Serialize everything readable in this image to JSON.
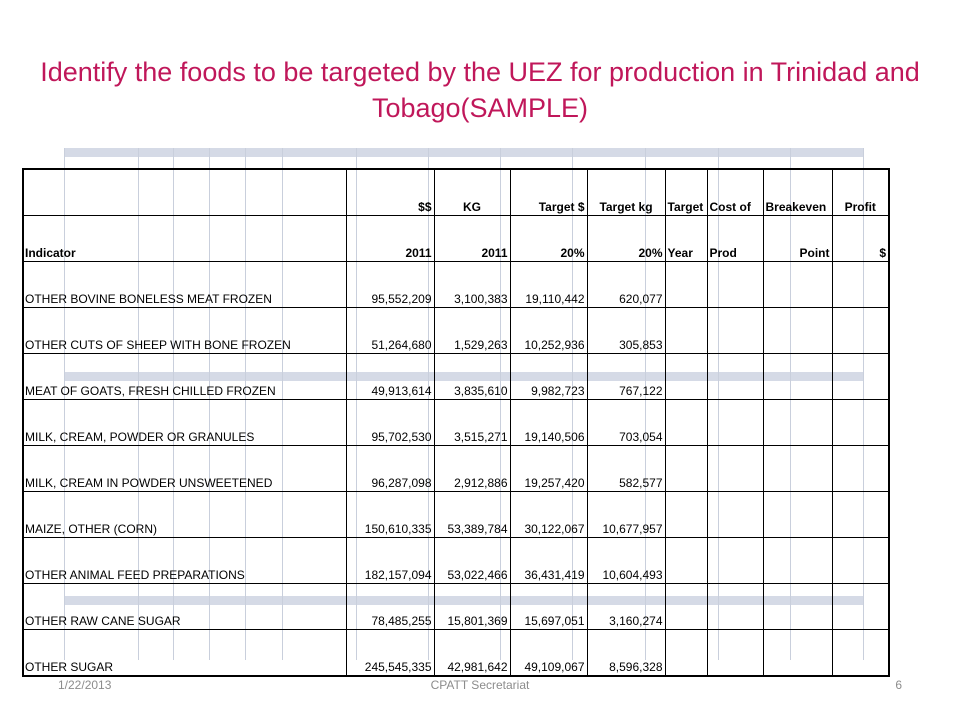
{
  "title": "Identify the foods to be targeted by the UEZ for production in Trinidad and Tobago(SAMPLE)",
  "table": {
    "header_row1": [
      "",
      "$$",
      "KG",
      "Target $",
      "Target kg",
      "Target",
      "Cost of",
      "Breakeven",
      "Profit"
    ],
    "header_row2": [
      "Indicator",
      "2011",
      "2011",
      "20%",
      "20%",
      "Year",
      "Prod",
      "Point",
      "$"
    ],
    "rows": [
      {
        "indicator": "OTHER BOVINE BONELESS MEAT FROZEN",
        "usd_2011": "95,552,209",
        "kg_2011": "3,100,383",
        "target_usd": "19,110,442",
        "target_kg": "620,077",
        "target_year": "",
        "cost_of_prod": "",
        "breakeven_point": "",
        "profit": ""
      },
      {
        "indicator": "OTHER CUTS OF SHEEP WITH BONE FROZEN",
        "usd_2011": "51,264,680",
        "kg_2011": "1,529,263",
        "target_usd": "10,252,936",
        "target_kg": "305,853",
        "target_year": "",
        "cost_of_prod": "",
        "breakeven_point": "",
        "profit": ""
      },
      {
        "indicator": "MEAT OF GOATS, FRESH CHILLED FROZEN",
        "usd_2011": "49,913,614",
        "kg_2011": "3,835,610",
        "target_usd": "9,982,723",
        "target_kg": "767,122",
        "target_year": "",
        "cost_of_prod": "",
        "breakeven_point": "",
        "profit": ""
      },
      {
        "indicator": "MILK, CREAM, POWDER OR GRANULES",
        "usd_2011": "95,702,530",
        "kg_2011": "3,515,271",
        "target_usd": "19,140,506",
        "target_kg": "703,054",
        "target_year": "",
        "cost_of_prod": "",
        "breakeven_point": "",
        "profit": ""
      },
      {
        "indicator": "MILK, CREAM IN POWDER UNSWEETENED",
        "usd_2011": "96,287,098",
        "kg_2011": "2,912,886",
        "target_usd": "19,257,420",
        "target_kg": "582,577",
        "target_year": "",
        "cost_of_prod": "",
        "breakeven_point": "",
        "profit": ""
      },
      {
        "indicator": "MAIZE, OTHER (CORN)",
        "usd_2011": "150,610,335",
        "kg_2011": "53,389,784",
        "target_usd": "30,122,067",
        "target_kg": "10,677,957",
        "target_year": "",
        "cost_of_prod": "",
        "breakeven_point": "",
        "profit": ""
      },
      {
        "indicator": "OTHER ANIMAL FEED PREPARATIONS",
        "usd_2011": "182,157,094",
        "kg_2011": "53,022,466",
        "target_usd": "36,431,419",
        "target_kg": "10,604,493",
        "target_year": "",
        "cost_of_prod": "",
        "breakeven_point": "",
        "profit": ""
      },
      {
        "indicator": "OTHER RAW CANE SUGAR",
        "usd_2011": "78,485,255",
        "kg_2011": "15,801,369",
        "target_usd": "15,697,051",
        "target_kg": "3,160,274",
        "target_year": "",
        "cost_of_prod": "",
        "breakeven_point": "",
        "profit": ""
      },
      {
        "indicator": "OTHER SUGAR",
        "usd_2011": "245,545,335",
        "kg_2011": "42,981,642",
        "target_usd": "49,109,067",
        "target_kg": "8,596,328",
        "target_year": "",
        "cost_of_prod": "",
        "breakeven_point": "",
        "profit": ""
      }
    ]
  },
  "footer": {
    "date": "1/22/2013",
    "center": "CPATT Secretariat",
    "page": "6"
  },
  "colors": {
    "title": "#c0175a",
    "grid_band": "#d5dae6",
    "grid_line": "#c9cfdc",
    "footer_text": "#8c8c8c"
  }
}
